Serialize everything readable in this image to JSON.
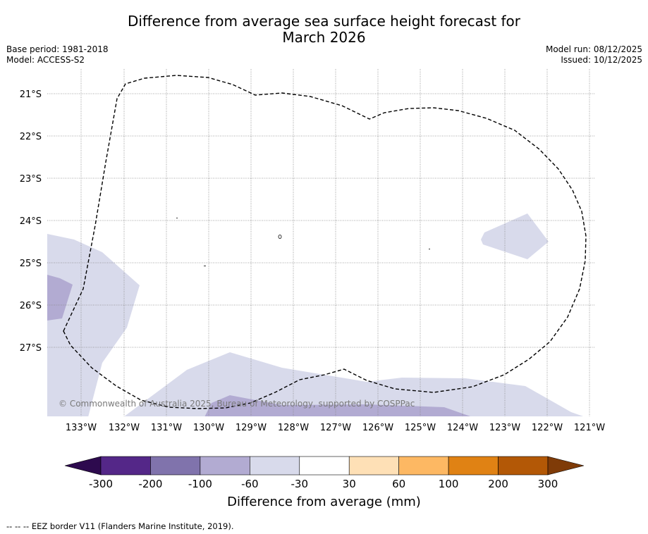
{
  "title": {
    "line1": "Difference from average sea surface height forecast for",
    "line2": "March 2026"
  },
  "meta": {
    "base_period": "Base period: 1981-2018",
    "model": "Model: ACCESS-S2",
    "model_run": "Model run: 08/12/2025",
    "issued": "Issued: 10/12/2025"
  },
  "map": {
    "lat_labels": [
      "21°S",
      "22°S",
      "23°S",
      "24°S",
      "25°S",
      "26°S",
      "27°S"
    ],
    "lon_labels": [
      "133°W",
      "132°W",
      "131°W",
      "130°W",
      "129°W",
      "128°W",
      "127°W",
      "126°W",
      "125°W",
      "124°W",
      "123°W",
      "122°W",
      "121°W"
    ],
    "copyright": "© Commonwealth of Australia 2025, Bureau of Meteorology, supported by COSPPac",
    "eez_color": "#000000"
  },
  "colorbar": {
    "ticks": [
      "-300",
      "-200",
      "-100",
      "-60",
      "-30",
      "30",
      "60",
      "100",
      "200",
      "300"
    ],
    "colors": [
      "#2d0a4e",
      "#542788",
      "#8073ac",
      "#b2abd2",
      "#d8daeb",
      "#ffffff",
      "#fee0b6",
      "#fdb863",
      "#e08214",
      "#b35806",
      "#7f3b08"
    ],
    "label": "Difference from average (mm)"
  },
  "footnote": "--  --  -- EEZ border V11 (Flanders Marine Institute, 2019)."
}
